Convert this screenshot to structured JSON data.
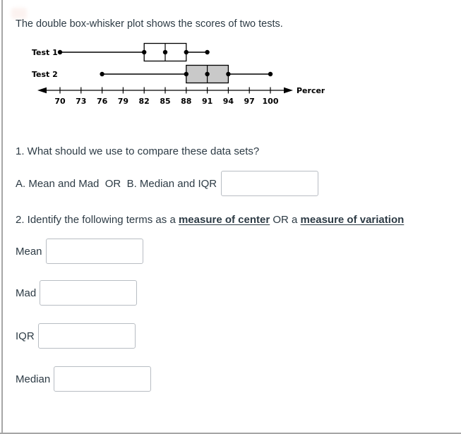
{
  "page": {
    "intro_text": "The double box-whisker plot shows the scores of two tests."
  },
  "colors": {
    "text": "#2d3b45",
    "plot_stroke": "#000000",
    "test1_box_fill": "#ffffff",
    "test2_box_fill": "#c9c9c9",
    "input_border": "#b8bdc3",
    "page_border": "#a6a6a6"
  },
  "chart_data": {
    "type": "boxplot",
    "orientation": "horizontal",
    "axis_label": "Percent",
    "axis_ticks": [
      70,
      73,
      76,
      79,
      82,
      85,
      88,
      91,
      94,
      97,
      100
    ],
    "axis_range": [
      70,
      100
    ],
    "series": [
      {
        "name": "Test 1",
        "min": 70,
        "q1": 82,
        "median": 85,
        "q3": 88,
        "max": 91,
        "box_fill": "#ffffff"
      },
      {
        "name": "Test 2",
        "min": 76,
        "q1": 88,
        "median": 91,
        "q3": 94,
        "max": 100,
        "box_fill": "#c9c9c9"
      }
    ]
  },
  "questions": {
    "q1": {
      "prompt": "1. What should we use to compare these data sets?",
      "options_text": "A. Mean and Mad  OR  B. Median and IQR",
      "answer_value": ""
    },
    "q2": {
      "prompt_prefix": "2. Identify the following terms as a ",
      "term_center": "measure of center",
      "prompt_middle": " OR a ",
      "term_variation": "measure of variation",
      "items": [
        {
          "label": "Mean",
          "value": ""
        },
        {
          "label": "Mad",
          "value": ""
        },
        {
          "label": "IQR",
          "value": ""
        },
        {
          "label": "Median",
          "value": ""
        }
      ]
    }
  }
}
